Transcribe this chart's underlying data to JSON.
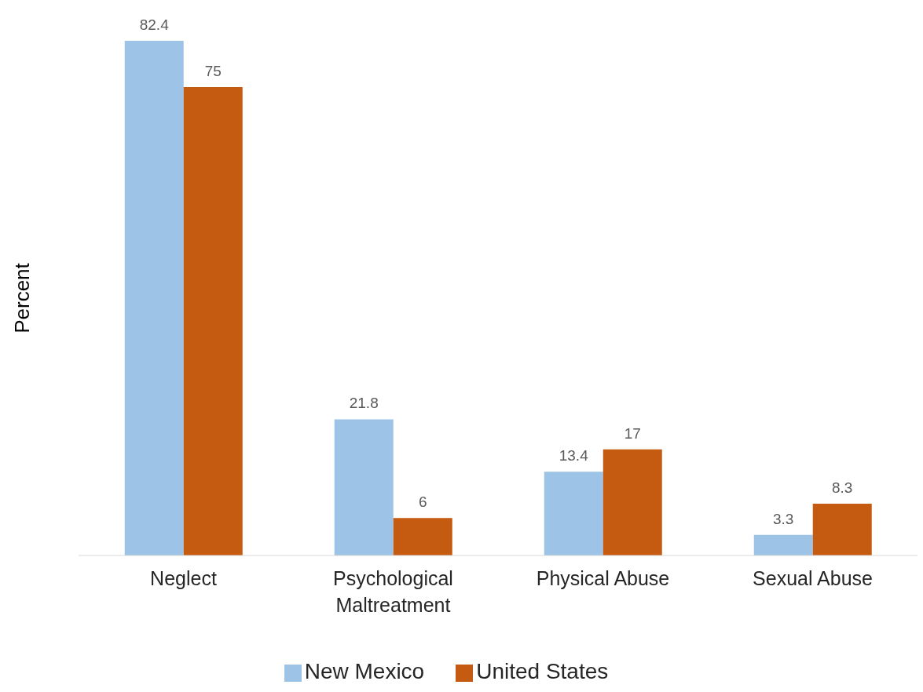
{
  "chart_data": {
    "type": "bar",
    "ylabel": "Percent",
    "categories": [
      "Neglect",
      "Psychological Maltreatment",
      "Physical Abuse",
      "Sexual Abuse"
    ],
    "series": [
      {
        "name": "New Mexico",
        "color": "#9dc3e6",
        "values": [
          82.4,
          21.8,
          13.4,
          3.3
        ]
      },
      {
        "name": "United States",
        "color": "#c55a11",
        "values": [
          75,
          6,
          17,
          8.3
        ]
      }
    ],
    "data_labels": true,
    "grid": false,
    "legend": "bottom"
  }
}
